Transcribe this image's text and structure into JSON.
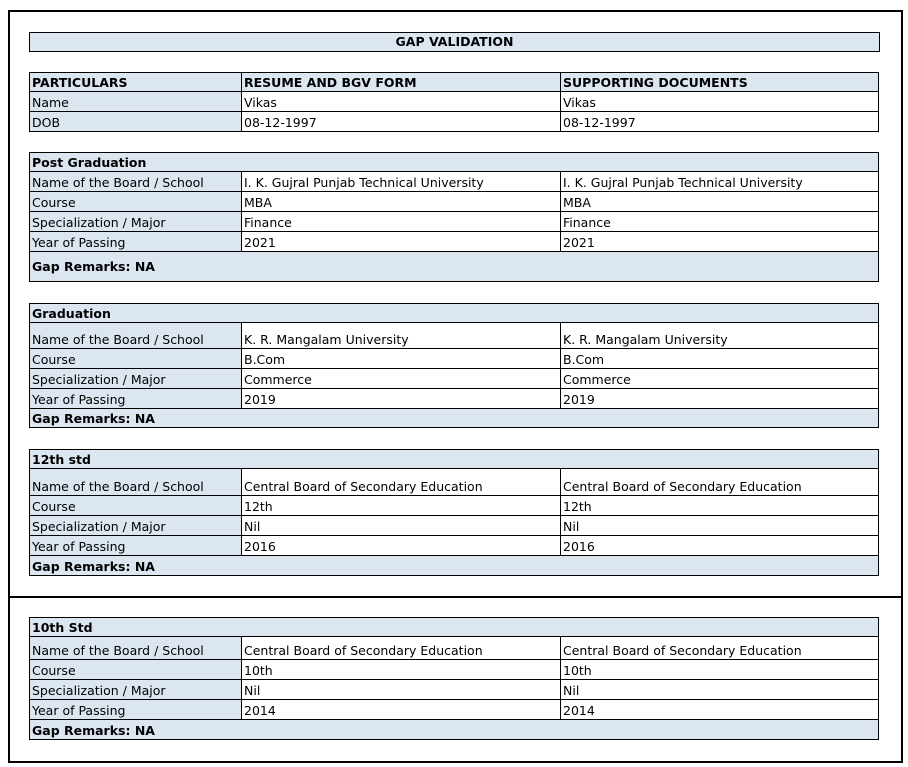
{
  "title": "GAP VALIDATION",
  "header": {
    "columns": [
      "PARTICULARS",
      "RESUME AND BGV FORM",
      "SUPPORTING DOCUMENTS"
    ],
    "rows": [
      [
        "Name",
        "Vikas",
        "Vikas"
      ],
      [
        "DOB",
        "08-12-1997",
        "08-12-1997"
      ]
    ]
  },
  "sections": [
    {
      "heading": "Post Graduation",
      "rows": [
        [
          "Name of the Board / School",
          "I. K. Gujral Punjab Technical University",
          "I. K. Gujral Punjab Technical University"
        ],
        [
          "Course",
          "MBA",
          "MBA"
        ],
        [
          "Specialization / Major",
          "Finance",
          "Finance"
        ],
        [
          "Year of Passing",
          "2021",
          "2021"
        ]
      ],
      "remarks": "Gap Remarks: NA"
    },
    {
      "heading": "Graduation",
      "rows": [
        [
          "Name of the Board / School",
          "K. R. Mangalam University",
          "K. R. Mangalam University"
        ],
        [
          "Course",
          "B.Com",
          "B.Com"
        ],
        [
          "Specialization / Major",
          "Commerce",
          "Commerce"
        ],
        [
          "Year of Passing",
          "2019",
          "2019"
        ]
      ],
      "remarks": "Gap Remarks: NA"
    },
    {
      "heading": "12th std",
      "rows": [
        [
          "Name of the Board / School",
          "Central Board of Secondary Education",
          "Central Board of Secondary Education"
        ],
        [
          "Course",
          "12th",
          "12th"
        ],
        [
          "Specialization / Major",
          "Nil",
          "Nil"
        ],
        [
          "Year of Passing",
          "2016",
          "2016"
        ]
      ],
      "remarks": "Gap Remarks: NA"
    },
    {
      "heading": "10th Std",
      "rows": [
        [
          "Name of the Board / School",
          "Central Board of Secondary Education",
          "Central Board of Secondary Education"
        ],
        [
          "Course",
          "10th",
          "10th"
        ],
        [
          "Specialization / Major",
          "Nil",
          "Nil"
        ],
        [
          "Year of Passing",
          "2014",
          "2014"
        ]
      ],
      "remarks": "Gap Remarks: NA"
    }
  ],
  "colors": {
    "cell_fill": "#dce6f1",
    "border": "#000000"
  }
}
